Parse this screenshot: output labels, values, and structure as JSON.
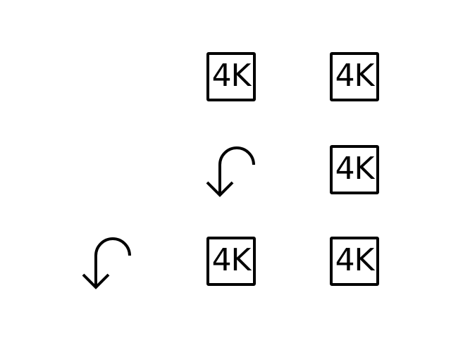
{
  "icons": {
    "badge_text": "4K",
    "badge_icon": "4k-icon",
    "arrow_icon": "undo-arrow-icon",
    "stroke_color": "#000000",
    "background_color": "#ffffff"
  }
}
